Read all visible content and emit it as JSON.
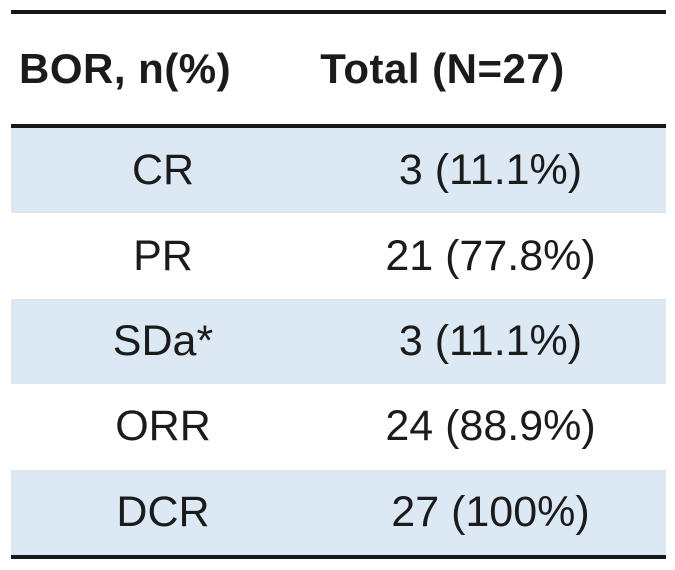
{
  "table": {
    "header": {
      "metric_label": "BOR, n(%)",
      "total_label": "Total (N=27)"
    },
    "rows": [
      {
        "label": "CR",
        "value": "3 (11.1%)",
        "shaded": true
      },
      {
        "label": "PR",
        "value": "21 (77.8%)",
        "shaded": false
      },
      {
        "label": "SDa*",
        "value": "3 (11.1%)",
        "shaded": true
      },
      {
        "label": "ORR",
        "value": "24 (88.9%)",
        "shaded": false
      },
      {
        "label": "DCR",
        "value": "27 (100%)",
        "shaded": true
      }
    ],
    "colors": {
      "row_shade": "#dce9f4",
      "rule": "#17181b",
      "text": "#1b1b1b",
      "background": "#ffffff"
    }
  },
  "chart_data": {
    "type": "table",
    "columns": [
      "BOR, n(%)",
      "Total (N=27)"
    ],
    "rows": [
      [
        "CR",
        "3 (11.1%)"
      ],
      [
        "PR",
        "21 (77.8%)"
      ],
      [
        "SDa*",
        "3 (11.1%)"
      ],
      [
        "ORR",
        "24 (88.9%)"
      ],
      [
        "DCR",
        "27 (100%)"
      ]
    ],
    "notes": "Best overall response table; N=27; shaded rows: CR, SDa*, DCR"
  }
}
